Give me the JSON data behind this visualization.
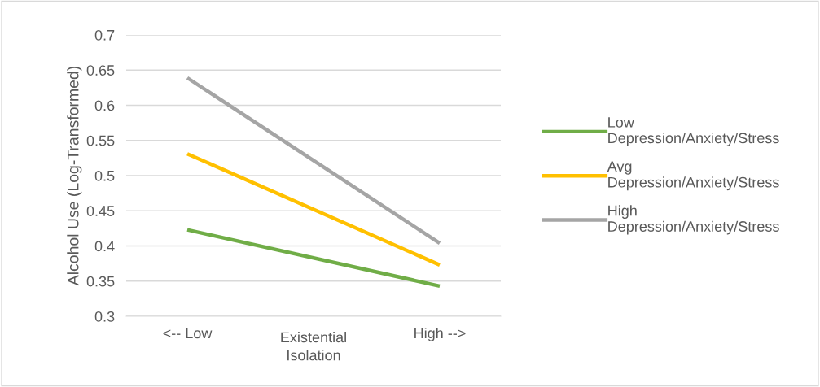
{
  "chart_data": {
    "type": "line",
    "xlabel": "Existential Isolation",
    "ylabel": "Alcohol Use (Log-Transformed)",
    "categories": [
      "<-- Low",
      "High -->"
    ],
    "series": [
      {
        "name": "Low Depression/Anxiety/Stress",
        "color": "#70ad47",
        "values": [
          0.423,
          0.343
        ]
      },
      {
        "name": "Avg Depression/Anxiety/Stress",
        "color": "#ffc000",
        "values": [
          0.531,
          0.373
        ]
      },
      {
        "name": "High Depression/Anxiety/Stress",
        "color": "#a5a5a5",
        "values": [
          0.639,
          0.404
        ]
      }
    ],
    "ylim": [
      0.3,
      0.7
    ],
    "yticks": [
      0.3,
      0.35,
      0.4,
      0.45,
      0.5,
      0.55,
      0.6,
      0.65,
      0.7
    ],
    "grid": "y",
    "legend": "right",
    "marker": "none",
    "line_style": "solid"
  }
}
